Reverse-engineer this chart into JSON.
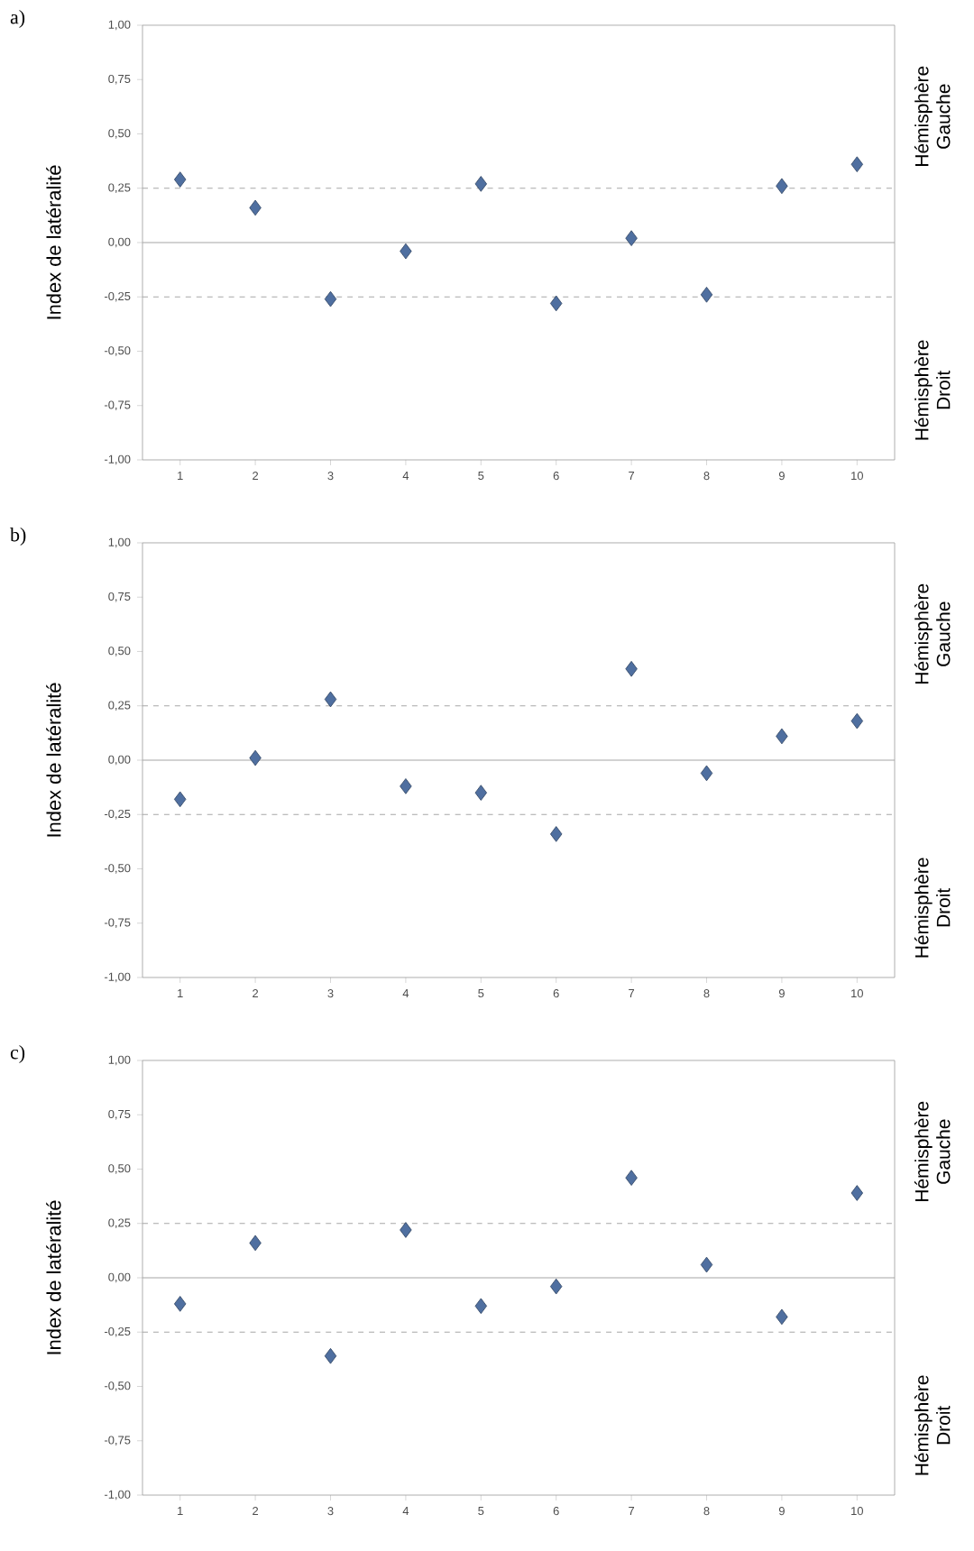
{
  "chart_data": [
    {
      "type": "scatter",
      "title": "a)",
      "ylabel": "Index de latéralité",
      "annotations": [
        "Hémisphère Gauche",
        "Hémisphère Droit"
      ],
      "categories": [
        "1",
        "2",
        "3",
        "4",
        "5",
        "6",
        "7",
        "8",
        "9",
        "10"
      ],
      "marker": "diamond",
      "color": "#4f6fa0",
      "values": [
        0.29,
        0.16,
        -0.26,
        -0.04,
        0.27,
        -0.28,
        0.02,
        -0.24,
        0.26,
        0.36
      ],
      "ylim": [
        -1,
        1
      ],
      "yticks": [
        {
          "value": -1,
          "label": "-1,00"
        },
        {
          "value": -0.75,
          "label": "-0,75"
        },
        {
          "value": -0.5,
          "label": "-0,50"
        },
        {
          "value": -0.25,
          "label": "-0,25"
        },
        {
          "value": 0,
          "label": "0,00"
        },
        {
          "value": 0.25,
          "label": "0,25"
        },
        {
          "value": 0.5,
          "label": "0,50"
        },
        {
          "value": 0.75,
          "label": "0,75"
        },
        {
          "value": 1,
          "label": "1,00"
        }
      ],
      "ref_lines": [
        {
          "axis": "y",
          "value": 0.25,
          "color": "#a6a6a6",
          "line_style": "dashed"
        },
        {
          "axis": "y",
          "value": 0,
          "color": "#a6a6a6",
          "line_style": "solid"
        },
        {
          "axis": "y",
          "value": -0.25,
          "color": "#a6a6a6",
          "line_style": "dashed"
        }
      ]
    },
    {
      "type": "scatter",
      "title": "b)",
      "ylabel": "Index de latéralité",
      "annotations": [
        "Hémisphère Gauche",
        "Hémisphère Droit"
      ],
      "categories": [
        "1",
        "2",
        "3",
        "4",
        "5",
        "6",
        "7",
        "8",
        "9",
        "10"
      ],
      "marker": "diamond",
      "color": "#4f6fa0",
      "values": [
        -0.18,
        0.01,
        0.28,
        -0.12,
        -0.15,
        -0.34,
        0.42,
        -0.06,
        0.11,
        0.18
      ],
      "ylim": [
        -1,
        1
      ],
      "yticks": [
        {
          "value": -1,
          "label": "-1,00"
        },
        {
          "value": -0.75,
          "label": "-0,75"
        },
        {
          "value": -0.5,
          "label": "-0,50"
        },
        {
          "value": -0.25,
          "label": "-0,25"
        },
        {
          "value": 0,
          "label": "0,00"
        },
        {
          "value": 0.25,
          "label": "0,25"
        },
        {
          "value": 0.5,
          "label": "0,50"
        },
        {
          "value": 0.75,
          "label": "0,75"
        },
        {
          "value": 1,
          "label": "1,00"
        }
      ],
      "ref_lines": [
        {
          "axis": "y",
          "value": 0.25,
          "color": "#a6a6a6",
          "line_style": "dashed"
        },
        {
          "axis": "y",
          "value": 0,
          "color": "#a6a6a6",
          "line_style": "solid"
        },
        {
          "axis": "y",
          "value": -0.25,
          "color": "#a6a6a6",
          "line_style": "dashed"
        }
      ]
    },
    {
      "type": "scatter",
      "title": "c)",
      "ylabel": "Index de latéralité",
      "annotations": [
        "Hémisphère Gauche",
        "Hémisphère Droit"
      ],
      "categories": [
        "1",
        "2",
        "3",
        "4",
        "5",
        "6",
        "7",
        "8",
        "9",
        "10"
      ],
      "marker": "diamond",
      "color": "#4f6fa0",
      "values": [
        -0.12,
        0.16,
        -0.36,
        0.22,
        -0.13,
        -0.04,
        0.46,
        0.06,
        -0.18,
        0.39
      ],
      "ylim": [
        -1,
        1
      ],
      "yticks": [
        {
          "value": -1,
          "label": "-1,00"
        },
        {
          "value": -0.75,
          "label": "-0,75"
        },
        {
          "value": -0.5,
          "label": "-0,50"
        },
        {
          "value": -0.25,
          "label": "-0,25"
        },
        {
          "value": 0,
          "label": "0,00"
        },
        {
          "value": 0.25,
          "label": "0,25"
        },
        {
          "value": 0.5,
          "label": "0,50"
        },
        {
          "value": 0.75,
          "label": "0,75"
        },
        {
          "value": 1,
          "label": "1,00"
        }
      ],
      "ref_lines": [
        {
          "axis": "y",
          "value": 0.25,
          "color": "#a6a6a6",
          "line_style": "dashed"
        },
        {
          "axis": "y",
          "value": 0,
          "color": "#a6a6a6",
          "line_style": "solid"
        },
        {
          "axis": "y",
          "value": -0.25,
          "color": "#a6a6a6",
          "line_style": "dashed"
        }
      ]
    }
  ]
}
